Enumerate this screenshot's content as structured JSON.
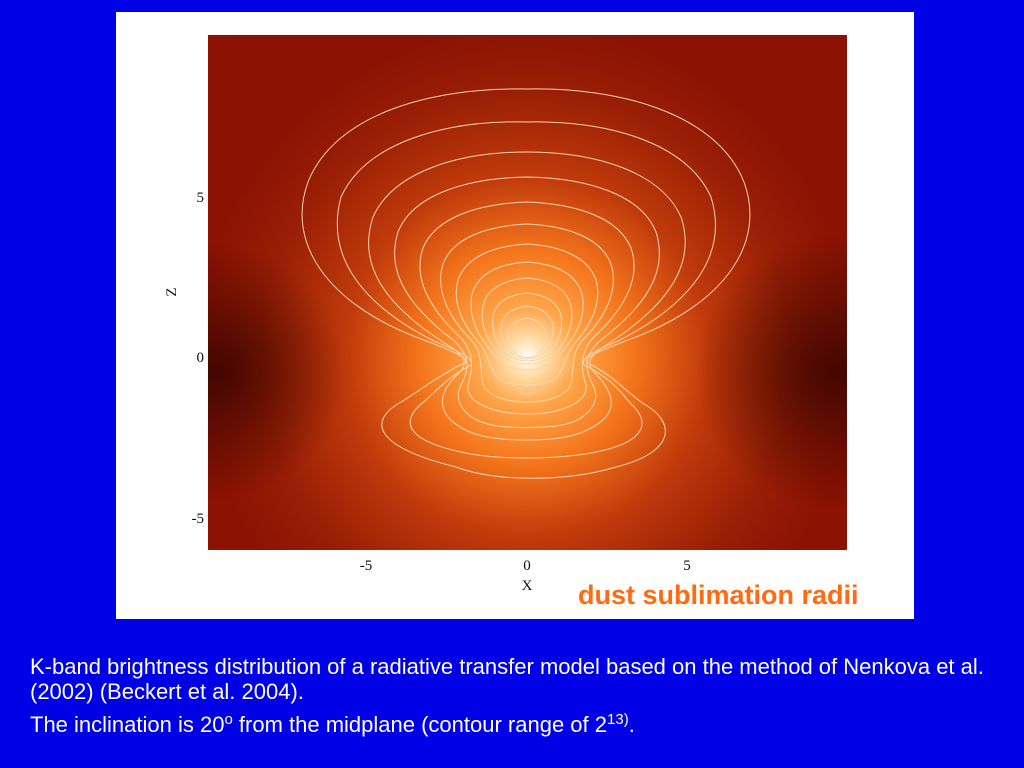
{
  "figure": {
    "x_axis_label": "X",
    "z_axis_label": "Z",
    "x_ticks": [
      "-5",
      "0",
      "5"
    ],
    "z_ticks": [
      "5",
      "0",
      "-5"
    ],
    "annotation": "dust sublimation radii"
  },
  "caption": {
    "line1": "K-band brightness distribution of a radiative transfer model based on the method of Nenkova et al. (2002) (Beckert et al. 2004).",
    "line2_text": "The inclination is 20",
    "line2_sup1": "o",
    "line2_mid": " from the midplane (contour range of 2",
    "line2_sup2": "13)",
    "line2_end": "."
  },
  "colors": {
    "background": "#0000e6",
    "annotation": "#ff6a13",
    "map_outer": "#8c1203",
    "map_core": "#ffffff",
    "contour": "#f4d6b0"
  },
  "icons": []
}
